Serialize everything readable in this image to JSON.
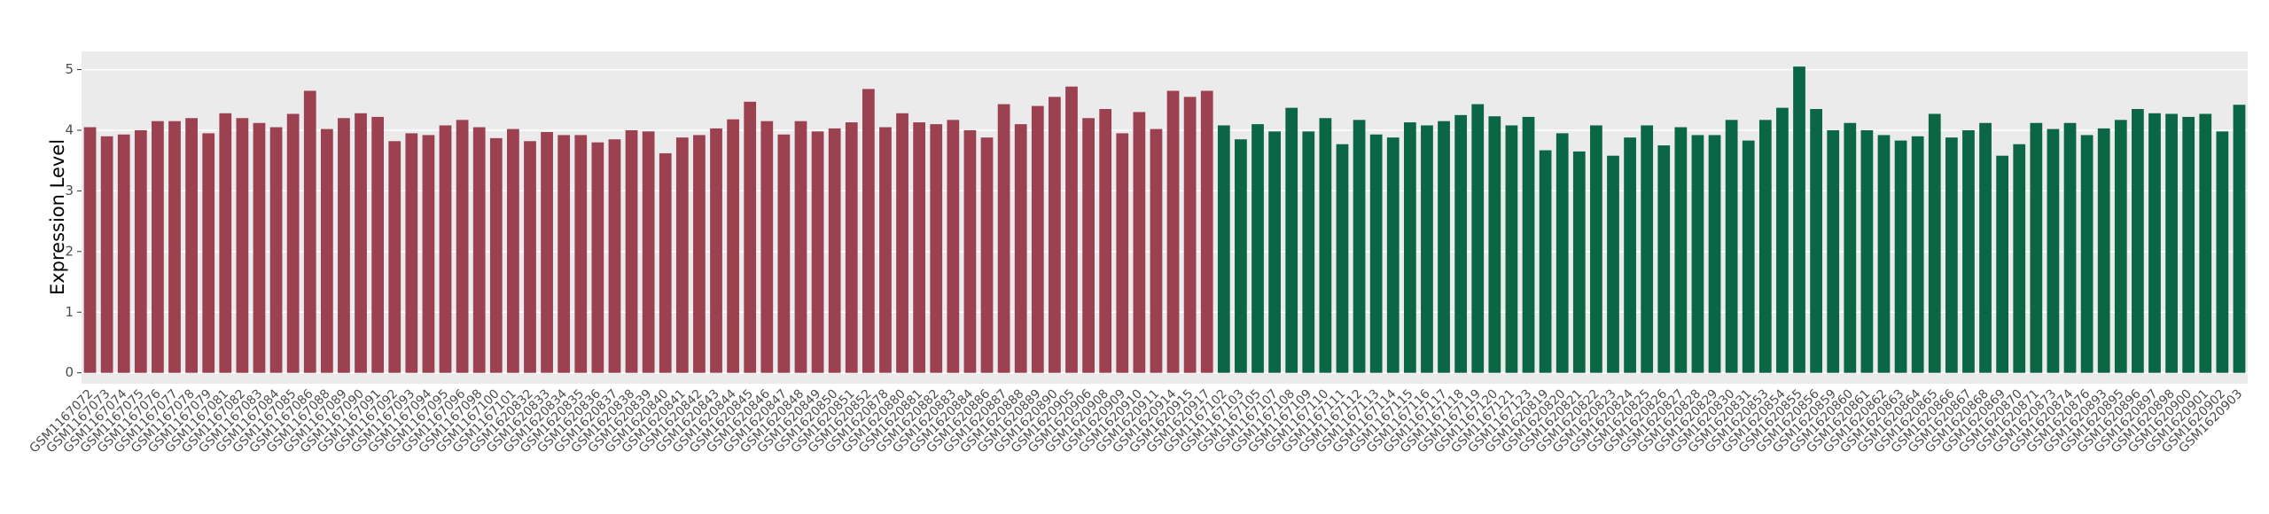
{
  "chart_data": {
    "type": "bar",
    "y_label": "Expression Level",
    "ylim": [
      -0.18,
      5.3
    ],
    "yticks": [
      0,
      1,
      2,
      3,
      4,
      5
    ],
    "grid": true,
    "series": [
      {
        "color": "#9b4150",
        "categories": [
          "GSM1167072",
          "GSM1167073",
          "GSM1167074",
          "GSM1167075",
          "GSM1167076",
          "GSM1167077",
          "GSM1167078",
          "GSM1167079",
          "GSM1167081",
          "GSM1167082",
          "GSM1167083",
          "GSM1167084",
          "GSM1167085",
          "GSM1167086",
          "GSM1167088",
          "GSM1167089",
          "GSM1167090",
          "GSM1167091",
          "GSM1167092",
          "GSM1167093",
          "GSM1167094",
          "GSM1167095",
          "GSM1167096",
          "GSM1167098",
          "GSM1167100",
          "GSM1167101",
          "GSM1620832",
          "GSM1620833",
          "GSM1620834",
          "GSM1620835",
          "GSM1620836",
          "GSM1620837",
          "GSM1620838",
          "GSM1620839",
          "GSM1620840",
          "GSM1620841",
          "GSM1620842",
          "GSM1620843",
          "GSM1620844",
          "GSM1620845",
          "GSM1620846",
          "GSM1620847",
          "GSM1620848",
          "GSM1620849",
          "GSM1620850",
          "GSM1620851",
          "GSM1620852",
          "GSM1620878",
          "GSM1620880",
          "GSM1620881",
          "GSM1620882",
          "GSM1620883",
          "GSM1620884",
          "GSM1620886",
          "GSM1620887",
          "GSM1620888",
          "GSM1620889",
          "GSM1620890",
          "GSM1620905",
          "GSM1620906",
          "GSM1620908",
          "GSM1620909",
          "GSM1620910",
          "GSM1620911",
          "GSM1620914",
          "GSM1620915",
          "GSM1620917"
        ],
        "values": [
          4.05,
          3.9,
          3.93,
          4.0,
          4.15,
          4.15,
          4.2,
          3.95,
          4.28,
          4.2,
          4.12,
          4.05,
          4.27,
          4.65,
          4.02,
          4.2,
          4.28,
          4.22,
          3.82,
          3.95,
          3.92,
          4.08,
          4.17,
          4.05,
          3.87,
          4.02,
          3.82,
          3.97,
          3.92,
          3.92,
          3.8,
          3.85,
          4.0,
          3.98,
          3.62,
          3.88,
          3.92,
          4.03,
          4.18,
          4.47,
          4.15,
          3.93,
          4.15,
          3.98,
          4.03,
          4.13,
          4.68,
          4.05,
          4.28,
          4.13,
          4.1,
          4.17,
          4.0,
          3.88,
          4.43,
          4.1,
          4.4,
          4.55,
          4.72,
          4.2,
          4.35,
          3.95,
          4.3,
          4.02,
          4.65,
          4.55,
          4.65
        ]
      },
      {
        "color": "#0a6644",
        "categories": [
          "GSM1167102",
          "GSM1167103",
          "GSM1167105",
          "GSM1167107",
          "GSM1167108",
          "GSM1167109",
          "GSM1167110",
          "GSM1167111",
          "GSM1167112",
          "GSM1167113",
          "GSM1167114",
          "GSM1167115",
          "GSM1167116",
          "GSM1167117",
          "GSM1167118",
          "GSM1167119",
          "GSM1167120",
          "GSM1167121",
          "GSM1167123",
          "GSM1620819",
          "GSM1620820",
          "GSM1620821",
          "GSM1620822",
          "GSM1620823",
          "GSM1620824",
          "GSM1620825",
          "GSM1620826",
          "GSM1620827",
          "GSM1620828",
          "GSM1620829",
          "GSM1620830",
          "GSM1620831",
          "GSM1620853",
          "GSM1620854",
          "GSM1620855",
          "GSM1620856",
          "GSM1620859",
          "GSM1620860",
          "GSM1620861",
          "GSM1620862",
          "GSM1620863",
          "GSM1620864",
          "GSM1620865",
          "GSM1620866",
          "GSM1620867",
          "GSM1620868",
          "GSM1620869",
          "GSM1620870",
          "GSM1620871",
          "GSM1620873",
          "GSM1620874",
          "GSM1620876",
          "GSM1620893",
          "GSM1620895",
          "GSM1620896",
          "GSM1620897",
          "GSM1620898",
          "GSM1620900",
          "GSM1620901",
          "GSM1620902",
          "GSM1620903"
        ],
        "values": [
          4.08,
          3.85,
          4.1,
          3.98,
          4.37,
          3.98,
          4.2,
          3.77,
          4.17,
          3.93,
          3.88,
          4.13,
          4.08,
          4.15,
          4.25,
          4.43,
          4.23,
          4.08,
          4.22,
          3.67,
          3.95,
          3.65,
          4.08,
          3.58,
          3.88,
          4.08,
          3.75,
          4.05,
          3.92,
          3.92,
          4.17,
          3.83,
          4.17,
          4.37,
          5.05,
          4.35,
          4.0,
          4.12,
          4.0,
          3.92,
          3.83,
          3.9,
          4.27,
          3.88,
          4.0,
          4.12,
          3.58,
          3.77,
          4.12,
          4.02,
          4.12,
          3.92,
          4.03,
          4.17,
          4.35,
          4.28,
          4.27,
          4.22,
          4.27,
          3.98,
          4.42
        ]
      }
    ]
  }
}
